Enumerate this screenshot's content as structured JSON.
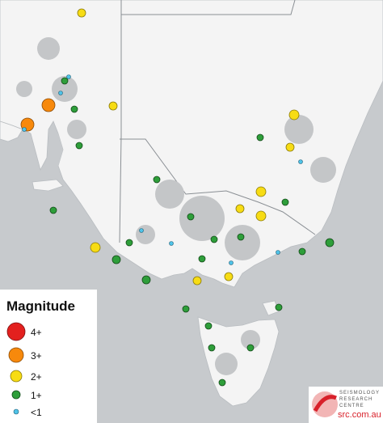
{
  "legend": {
    "title": "Magnitude",
    "items": [
      {
        "label": "4+"
      },
      {
        "label": "3+"
      },
      {
        "label": "2+"
      },
      {
        "label": "1+"
      },
      {
        "label": "<1"
      }
    ]
  },
  "logo": {
    "line1": "SEISMOLOGY",
    "line2": "RESEARCH",
    "line3": "CENTRE",
    "url": "src.com.au"
  }
}
